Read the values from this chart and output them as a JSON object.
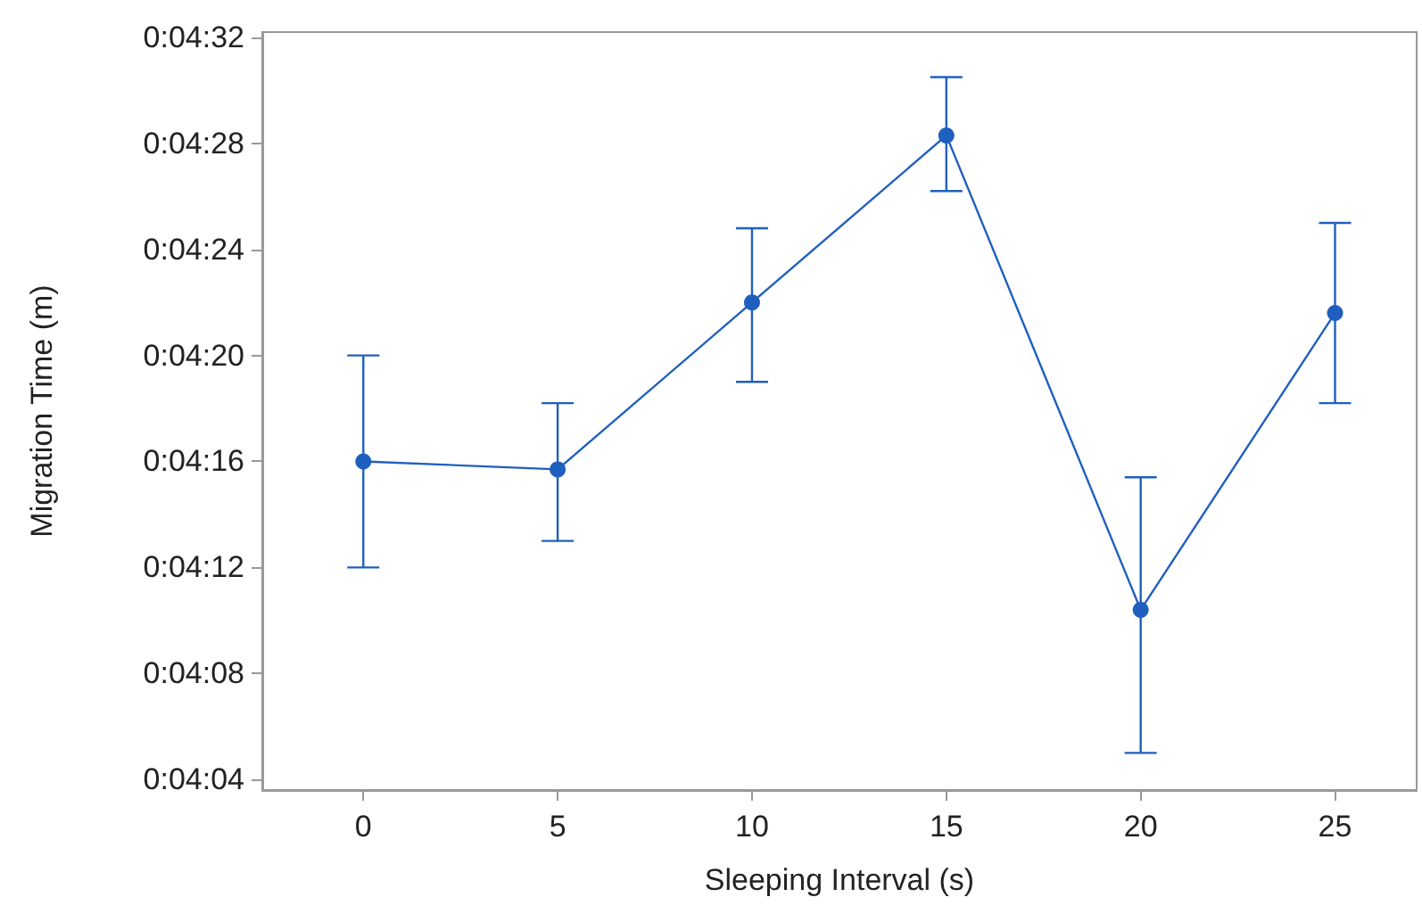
{
  "chart_data": {
    "type": "line",
    "xlabel": "Sleeping Interval (s)",
    "ylabel": "Migration Time (m)",
    "x": [
      0,
      5,
      10,
      15,
      20,
      25
    ],
    "series": [
      {
        "color": "#1f5fbf",
        "values": [
          256,
          255.7,
          262,
          268.3,
          250.4,
          261.6
        ],
        "errors": [
          [
            252,
            260
          ],
          [
            253,
            258.2
          ],
          [
            259,
            264.8
          ],
          [
            266.2,
            270.5
          ],
          [
            245,
            255.4
          ],
          [
            258.2,
            265
          ]
        ]
      }
    ],
    "xlim": [
      -2.6,
      27.1
    ],
    "xticks": [
      0,
      5,
      10,
      15,
      20,
      25
    ],
    "ylim": [
      243.6,
      272.2
    ],
    "yticks": [
      {
        "value": 244,
        "label": "0:04:04"
      },
      {
        "value": 248,
        "label": "0:04:08"
      },
      {
        "value": 252,
        "label": "0:04:12"
      },
      {
        "value": 256,
        "label": "0:04:16"
      },
      {
        "value": 260,
        "label": "0:04:20"
      },
      {
        "value": 264,
        "label": "0:04:24"
      },
      {
        "value": 268,
        "label": "0:04:28"
      },
      {
        "value": 272,
        "label": "0:04:32"
      }
    ],
    "marker": "circle",
    "line_style": "solid"
  }
}
